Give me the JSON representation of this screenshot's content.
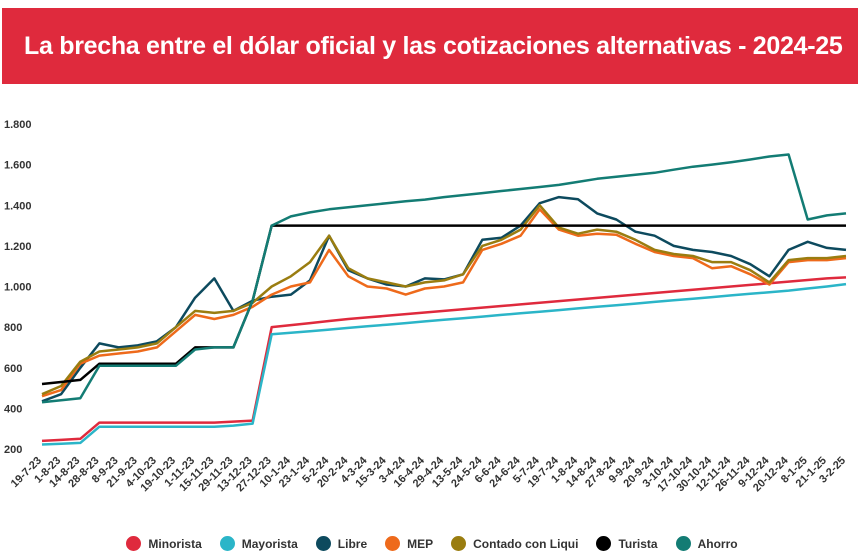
{
  "title": "La brecha entre el dólar oficial y las cotizaciones alternativas - 2024-25",
  "chart_data": {
    "type": "line",
    "title": "La brecha entre el dólar oficial y las cotizaciones alternativas - 2024-25",
    "xlabel": "",
    "ylabel": "",
    "ylim": [
      200,
      1800
    ],
    "y_ticks": [
      "200",
      "400",
      "600",
      "800",
      "1.000",
      "1.200",
      "1.400",
      "1.600",
      "1.800"
    ],
    "y_tick_values": [
      200,
      400,
      600,
      800,
      1000,
      1200,
      1400,
      1600,
      1800
    ],
    "grid": false,
    "legend_position": "bottom",
    "categories": [
      "19-7-23",
      "1-8-23",
      "14-8-23",
      "28-8-23",
      "8-9-23",
      "21-9-23",
      "4-10-23",
      "19-10-23",
      "1-11-23",
      "15-11-23",
      "29-11-23",
      "13-12-23",
      "27-12-23",
      "10-1-24",
      "23-1-24",
      "5-2-24",
      "20-2-24",
      "4-3-24",
      "15-3-24",
      "3-4-24",
      "16-4-24",
      "29-4-24",
      "13-5-24",
      "24-5-24",
      "6-6-24",
      "24-6-24",
      "5-7-24",
      "19-7-24",
      "1-8-24",
      "14-8-24",
      "27-8-24",
      "9-9-24",
      "20-9-24",
      "3-10-24",
      "17-10-24",
      "30-10-24",
      "12-11-24",
      "26-11-24",
      "9-12-24",
      "20-12-24",
      "8-1-25",
      "21-1-25",
      "3-2-25"
    ],
    "series": [
      {
        "name": "Minorista",
        "color": "#df2a3d",
        "values": [
          240,
          245,
          250,
          330,
          330,
          330,
          330,
          330,
          330,
          330,
          335,
          340,
          800,
          810,
          820,
          830,
          840,
          848,
          856,
          864,
          872,
          880,
          888,
          896,
          904,
          912,
          920,
          928,
          936,
          944,
          952,
          960,
          968,
          976,
          984,
          992,
          1000,
          1008,
          1016,
          1024,
          1032,
          1040,
          1045
        ]
      },
      {
        "name": "Mayorista",
        "color": "#2bb5c8",
        "values": [
          222,
          226,
          230,
          310,
          310,
          310,
          310,
          310,
          310,
          310,
          315,
          325,
          765,
          772,
          780,
          788,
          796,
          804,
          812,
          820,
          828,
          836,
          844,
          852,
          860,
          868,
          876,
          884,
          892,
          900,
          908,
          916,
          924,
          932,
          940,
          948,
          956,
          964,
          972,
          980,
          990,
          1000,
          1012
        ]
      },
      {
        "name": "Libre",
        "color": "#0d4a5e",
        "values": [
          435,
          470,
          600,
          720,
          700,
          710,
          730,
          800,
          945,
          1040,
          880,
          930,
          950,
          960,
          1030,
          1250,
          1080,
          1040,
          1010,
          1000,
          1040,
          1035,
          1060,
          1230,
          1240,
          1300,
          1410,
          1440,
          1430,
          1360,
          1330,
          1270,
          1250,
          1200,
          1180,
          1170,
          1150,
          1110,
          1050,
          1180,
          1220,
          1190,
          1180
        ]
      },
      {
        "name": "MEP",
        "color": "#ee6a1b",
        "values": [
          460,
          490,
          620,
          660,
          670,
          680,
          700,
          780,
          860,
          840,
          860,
          900,
          960,
          1000,
          1020,
          1180,
          1050,
          1000,
          990,
          960,
          990,
          1000,
          1020,
          1180,
          1210,
          1250,
          1380,
          1280,
          1250,
          1260,
          1255,
          1210,
          1170,
          1150,
          1140,
          1090,
          1100,
          1060,
          1010,
          1120,
          1130,
          1130,
          1140
        ]
      },
      {
        "name": "Contado con Liqui",
        "color": "#9a7d10",
        "values": [
          470,
          510,
          630,
          680,
          690,
          700,
          720,
          800,
          880,
          870,
          880,
          920,
          1000,
          1050,
          1120,
          1250,
          1090,
          1040,
          1020,
          1000,
          1020,
          1030,
          1060,
          1200,
          1230,
          1280,
          1400,
          1290,
          1260,
          1280,
          1270,
          1230,
          1180,
          1160,
          1150,
          1120,
          1120,
          1080,
          1020,
          1130,
          1140,
          1140,
          1150
        ]
      },
      {
        "name": "Turista",
        "color": "#000000",
        "values": [
          520,
          530,
          540,
          620,
          620,
          620,
          620,
          620,
          700,
          700,
          700,
          930,
          1300,
          1300,
          1300,
          1300,
          1300,
          1300,
          1300,
          1300,
          1300,
          1300,
          1300,
          1300,
          1300,
          1300,
          1300,
          1300,
          1300,
          1300,
          1300,
          1300,
          1300,
          1300,
          1300,
          1300,
          1300,
          1300,
          1300,
          1300,
          1300,
          1300,
          1300
        ]
      },
      {
        "name": "Ahorro",
        "color": "#137c74",
        "values": [
          430,
          440,
          450,
          610,
          610,
          610,
          610,
          610,
          690,
          700,
          700,
          930,
          1300,
          1345,
          1365,
          1380,
          1390,
          1400,
          1410,
          1420,
          1428,
          1440,
          1450,
          1460,
          1470,
          1480,
          1490,
          1500,
          1515,
          1530,
          1540,
          1550,
          1560,
          1575,
          1590,
          1600,
          1612,
          1625,
          1640,
          1650,
          1330,
          1350,
          1360
        ]
      }
    ]
  }
}
